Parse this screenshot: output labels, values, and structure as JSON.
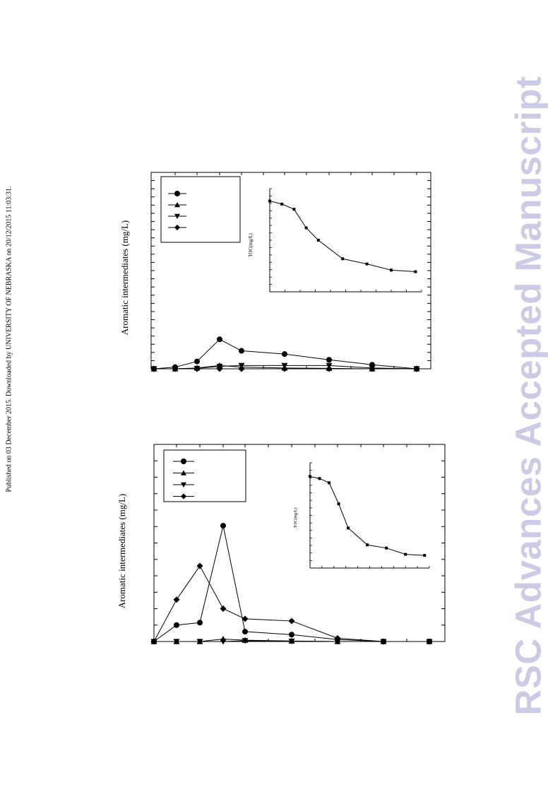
{
  "side_note": "Published on 03 December 2015. Downloaded by UNIVERSITY OF NEBRASKA on 20/12/2015 11:03:31.",
  "watermark": "RSC Advances Accepted Manuscript",
  "watermark_color": "#cbcbe6",
  "chart_data": [
    {
      "type": "line",
      "title": "",
      "ylabel": "Aromatic intermediates (mg/L)",
      "xlabel": "",
      "legend_position": "top-left",
      "ylim": [
        0,
        24
      ],
      "grid": false,
      "x": [
        0,
        1,
        2,
        3,
        4,
        6,
        8,
        10,
        12
      ],
      "series": [
        {
          "marker": "circle",
          "values": [
            0,
            0.2,
            0.9,
            3.6,
            2.2,
            1.8,
            1.1,
            0.5,
            0
          ]
        },
        {
          "marker": "triangle-up",
          "values": [
            0,
            0,
            0.1,
            0.4,
            0.2,
            0.1,
            0.05,
            0,
            0
          ]
        },
        {
          "marker": "triangle-down",
          "values": [
            0,
            0,
            0.05,
            0.3,
            0.4,
            0.4,
            0.4,
            0.1,
            0
          ]
        },
        {
          "marker": "diamond",
          "values": [
            0,
            0,
            0,
            0,
            0,
            0,
            0,
            0,
            0
          ]
        }
      ],
      "inset": {
        "type": "line",
        "ylabel": "TOC(mg/L)",
        "marker": "square",
        "x": [
          0,
          1,
          2,
          3,
          4,
          6,
          8,
          10,
          12
        ],
        "values": [
          88,
          85,
          80,
          62,
          50,
          32,
          27,
          21,
          19.5
        ],
        "ylim": [
          0,
          100
        ],
        "xlim": [
          0,
          12.5
        ]
      }
    },
    {
      "type": "line",
      "title": "",
      "ylabel": "Aromatic intermediates (mg/L)",
      "xlabel": "",
      "legend_position": "top-left",
      "ylim": [
        0,
        12
      ],
      "grid": false,
      "x": [
        0,
        1,
        2,
        3,
        4,
        6,
        8,
        10,
        12
      ],
      "series": [
        {
          "marker": "circle",
          "values": [
            0,
            1.0,
            1.15,
            7.05,
            0.6,
            0.42,
            0.12,
            0,
            0
          ]
        },
        {
          "marker": "triangle-up",
          "values": [
            0,
            0,
            0,
            0.15,
            0.08,
            0.03,
            0,
            0,
            0
          ]
        },
        {
          "marker": "triangle-down",
          "values": [
            0,
            0,
            0,
            0,
            0.05,
            0.02,
            0,
            0,
            0
          ]
        },
        {
          "marker": "diamond",
          "values": [
            0,
            2.55,
            4.6,
            2.0,
            1.38,
            1.25,
            0.2,
            0,
            0
          ]
        }
      ],
      "inset": {
        "type": "line",
        "ylabel": "TOC(mg/L)",
        "marker": "square",
        "x": [
          0,
          1,
          2,
          3,
          4,
          6,
          8,
          10,
          12
        ],
        "values": [
          87,
          85,
          81,
          61,
          38,
          22,
          19,
          13,
          12
        ],
        "ylim": [
          0,
          100
        ],
        "xlim": [
          0,
          12.5
        ]
      }
    }
  ]
}
